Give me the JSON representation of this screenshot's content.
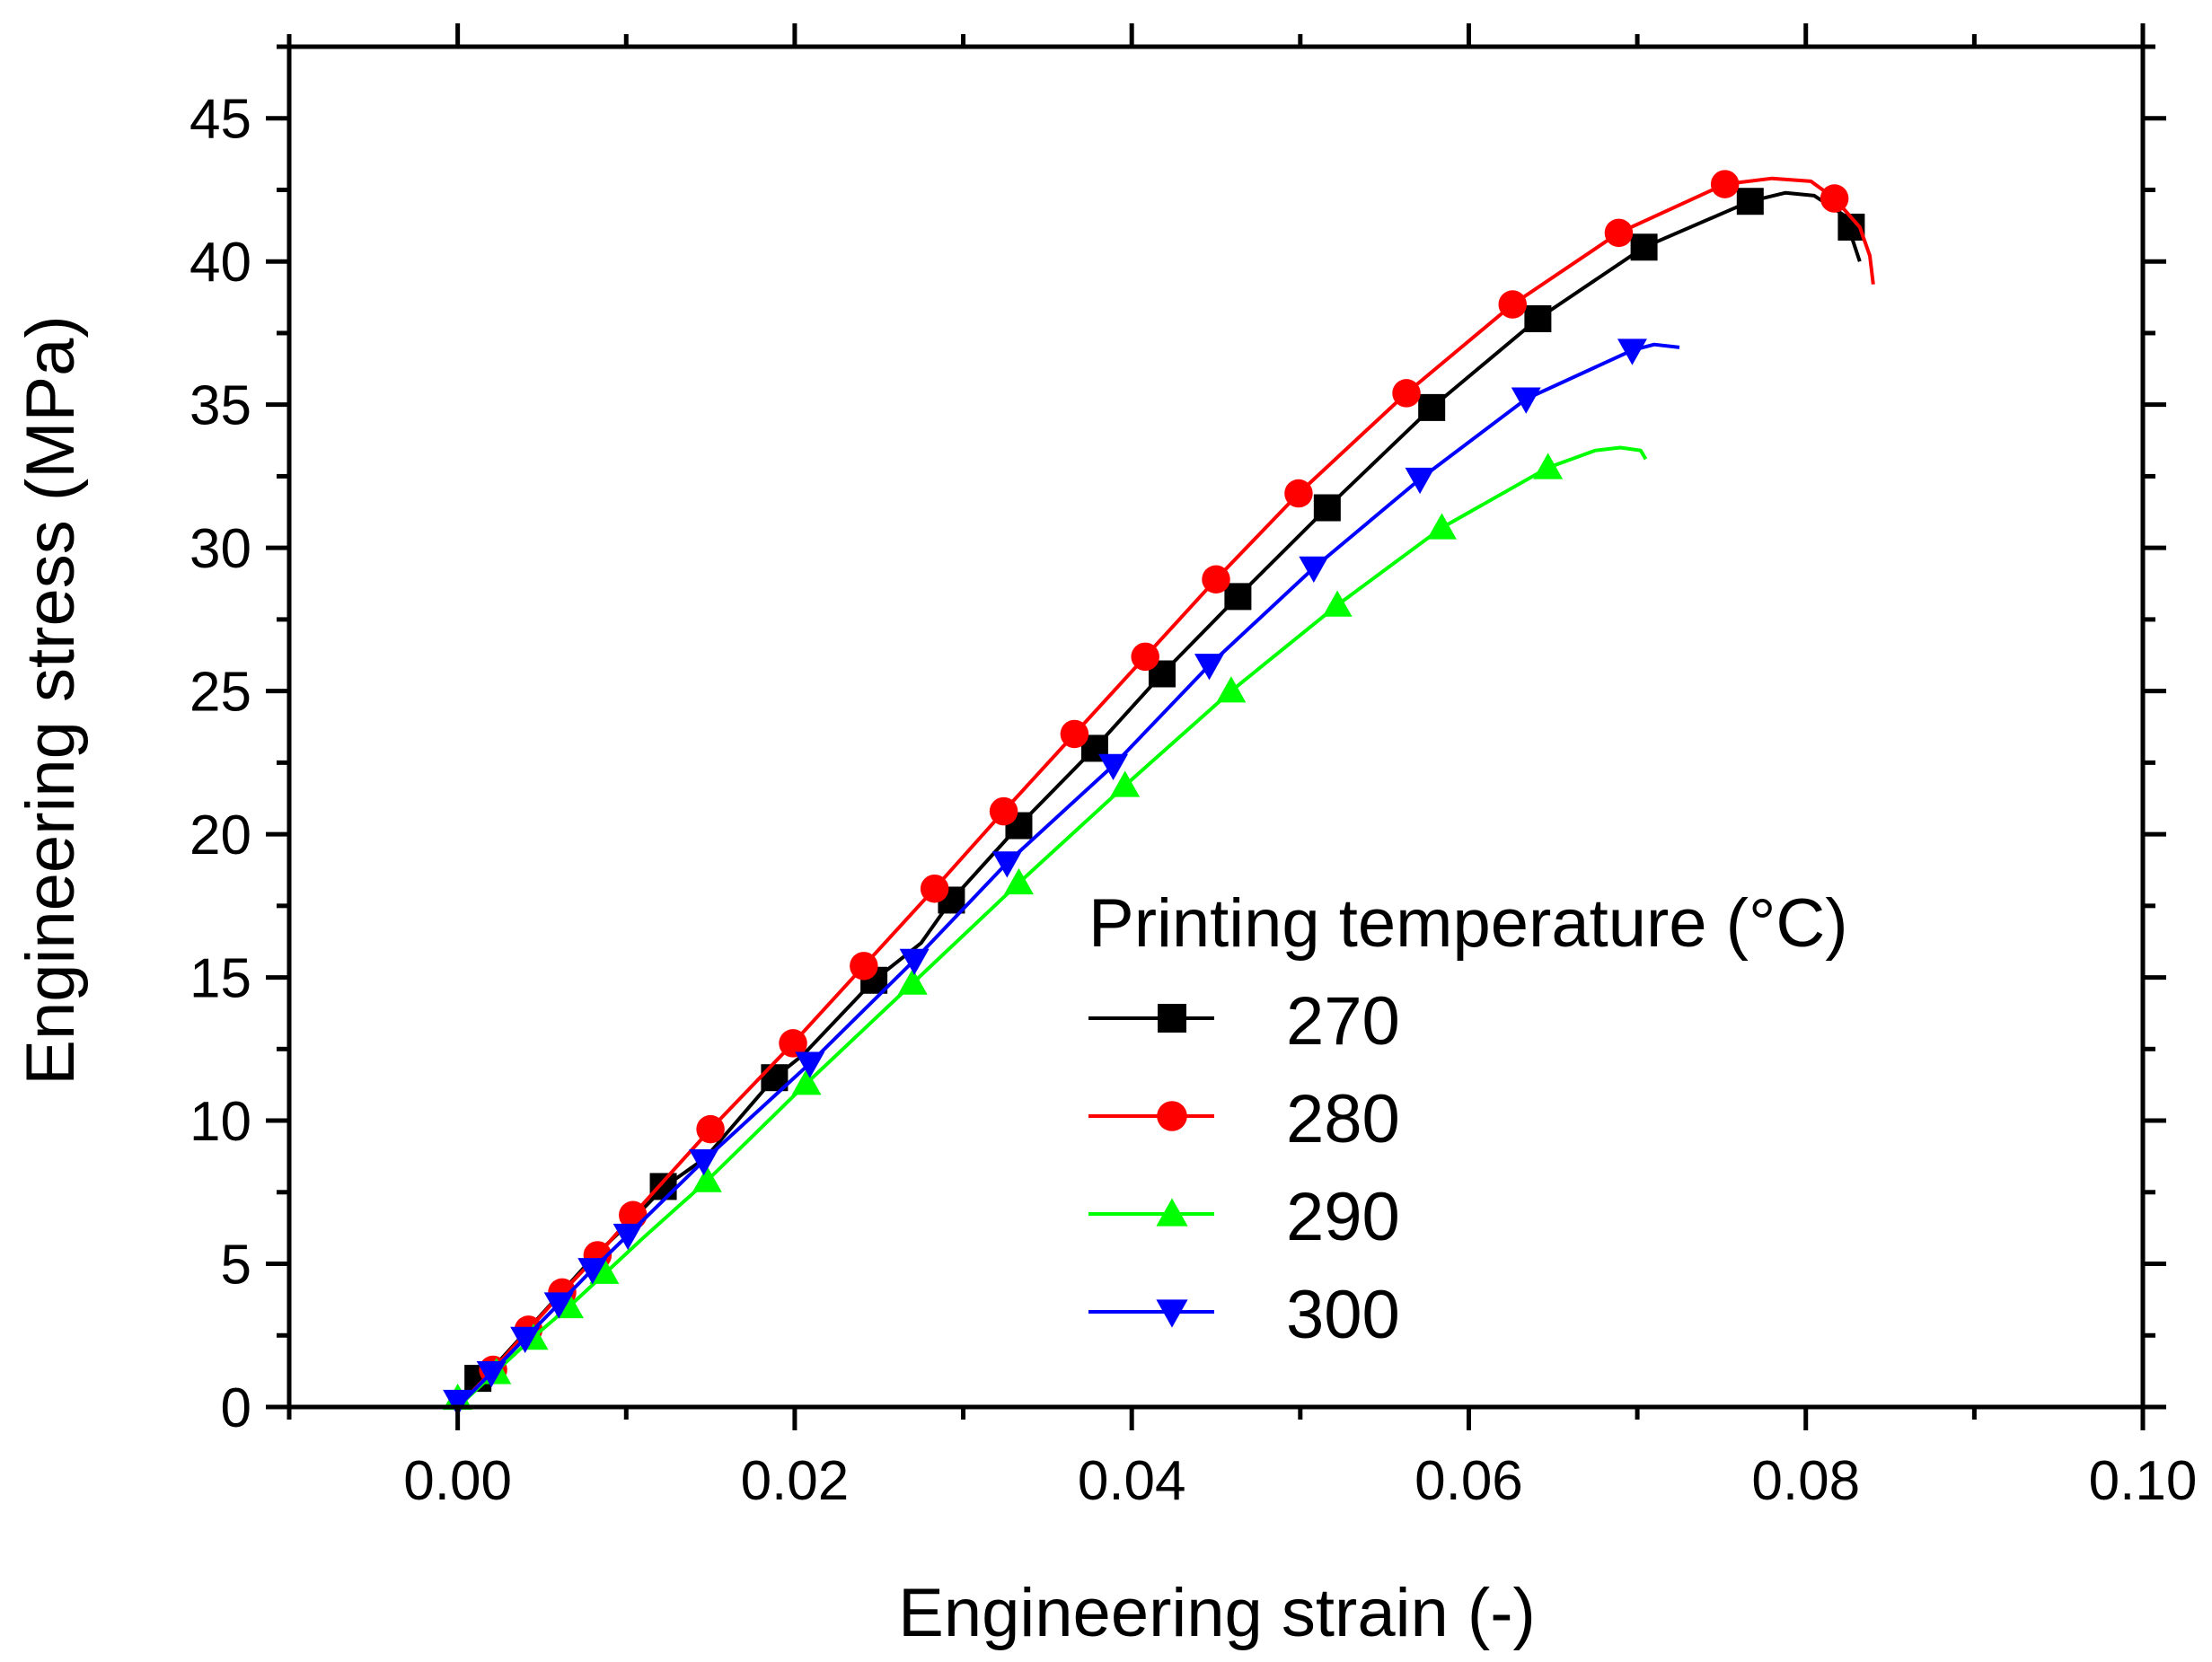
{
  "chart_data": {
    "type": "line",
    "xlabel": "Engineering strain (-)",
    "ylabel": "Engineering stress (MPa)",
    "xlim": [
      -0.01,
      0.1
    ],
    "ylim": [
      0,
      47.5
    ],
    "xticks": [
      0.0,
      0.02,
      0.04,
      0.06,
      0.08,
      0.1
    ],
    "xtick_labels": [
      "0.00",
      "0.02",
      "0.04",
      "0.06",
      "0.08",
      "0.10"
    ],
    "yticks": [
      0,
      5,
      10,
      15,
      20,
      25,
      30,
      35,
      40,
      45
    ],
    "ytick_labels": [
      "0",
      "5",
      "10",
      "15",
      "20",
      "25",
      "30",
      "35",
      "40",
      "45"
    ],
    "grid": false,
    "legend": {
      "title": "Printing temperature (°C)",
      "position": "center-right"
    },
    "series": [
      {
        "name": "270",
        "color": "#000000",
        "marker": "square",
        "x": [
          0.0,
          0.002,
          0.004,
          0.006,
          0.008,
          0.0103,
          0.0123,
          0.0147,
          0.0188,
          0.0205,
          0.0247,
          0.0275,
          0.0293,
          0.0333,
          0.0378,
          0.0418,
          0.0463,
          0.0516,
          0.0578,
          0.0641,
          0.0704,
          0.0767,
          0.0788,
          0.0805,
          0.0823,
          0.0832
        ],
        "y": [
          0.0,
          1.3,
          2.6,
          3.9,
          5.2,
          6.5,
          7.7,
          8.7,
          11.5,
          12.3,
          14.9,
          16.2,
          17.7,
          20.3,
          23.0,
          25.6,
          28.3,
          31.4,
          34.9,
          38.0,
          40.5,
          42.1,
          42.4,
          42.3,
          41.6,
          40.0
        ],
        "marker_x": [
          0.0012,
          0.0122,
          0.0188,
          0.0247,
          0.0293,
          0.0333,
          0.0378,
          0.0418,
          0.0463,
          0.0516,
          0.0578,
          0.0641,
          0.0704,
          0.0767,
          0.0827
        ],
        "marker_y": [
          1.0,
          7.7,
          11.5,
          14.9,
          17.7,
          20.3,
          23.0,
          25.6,
          28.3,
          31.4,
          34.9,
          38.0,
          40.5,
          42.1,
          41.2
        ]
      },
      {
        "name": "280",
        "color": "#ff0000",
        "marker": "circle",
        "x": [
          0.0,
          0.0021,
          0.0042,
          0.0062,
          0.0083,
          0.0104,
          0.015,
          0.0199,
          0.0241,
          0.0283,
          0.0324,
          0.0366,
          0.0408,
          0.045,
          0.0499,
          0.0563,
          0.0626,
          0.0689,
          0.0752,
          0.078,
          0.0803,
          0.0817,
          0.0832,
          0.0838,
          0.084
        ],
        "y": [
          0.0,
          1.3,
          2.7,
          4.0,
          5.3,
          6.7,
          9.7,
          12.7,
          15.4,
          18.1,
          20.8,
          23.5,
          26.2,
          28.9,
          31.9,
          35.4,
          38.5,
          41.0,
          42.7,
          42.9,
          42.8,
          42.2,
          41.2,
          40.2,
          39.2
        ],
        "marker_x": [
          0.0021,
          0.0042,
          0.0062,
          0.0083,
          0.0104,
          0.015,
          0.0199,
          0.0241,
          0.0283,
          0.0324,
          0.0366,
          0.0408,
          0.045,
          0.0499,
          0.0563,
          0.0626,
          0.0689,
          0.0752,
          0.0817
        ],
        "marker_y": [
          1.3,
          2.7,
          4.0,
          5.3,
          6.7,
          9.7,
          12.7,
          15.4,
          18.1,
          20.8,
          23.5,
          26.2,
          28.9,
          31.9,
          35.4,
          38.5,
          41.0,
          42.7,
          42.2
        ]
      },
      {
        "name": "290",
        "color": "#00ff00",
        "marker": "triangle-up",
        "x": [
          0.0,
          0.0022,
          0.0044,
          0.0066,
          0.0088,
          0.011,
          0.0148,
          0.0207,
          0.027,
          0.0333,
          0.0396,
          0.0459,
          0.0522,
          0.0584,
          0.0647,
          0.0675,
          0.069,
          0.0702,
          0.0705
        ],
        "y": [
          0.0,
          1.2,
          2.4,
          3.5,
          4.7,
          5.9,
          7.9,
          11.3,
          14.8,
          18.3,
          21.7,
          25.0,
          28.0,
          30.7,
          32.8,
          33.4,
          33.5,
          33.4,
          33.1
        ],
        "marker_x": [
          0.0,
          0.0023,
          0.0045,
          0.0066,
          0.0087,
          0.0148,
          0.0207,
          0.027,
          0.0333,
          0.0396,
          0.0459,
          0.0522,
          0.0584,
          0.0647
        ],
        "marker_y": [
          0.3,
          1.2,
          2.4,
          3.5,
          4.7,
          7.9,
          11.3,
          14.8,
          18.3,
          21.7,
          25.0,
          28.0,
          30.7,
          32.8
        ]
      },
      {
        "name": "300",
        "color": "#0000ff",
        "marker": "triangle-down",
        "x": [
          0.0,
          0.002,
          0.004,
          0.006,
          0.008,
          0.0101,
          0.0146,
          0.0209,
          0.0271,
          0.0326,
          0.0389,
          0.0446,
          0.0508,
          0.0571,
          0.0634,
          0.0697,
          0.071,
          0.0725
        ],
        "y": [
          0.0,
          1.2,
          2.4,
          3.6,
          4.8,
          6.0,
          8.6,
          12.0,
          15.6,
          19.0,
          22.4,
          25.9,
          29.3,
          32.4,
          35.2,
          36.9,
          37.1,
          37.0
        ],
        "marker_x": [
          0.0,
          0.002,
          0.004,
          0.006,
          0.008,
          0.0101,
          0.0146,
          0.0209,
          0.0271,
          0.0326,
          0.0389,
          0.0446,
          0.0508,
          0.0571,
          0.0634,
          0.0697
        ],
        "marker_y": [
          0.2,
          1.2,
          2.4,
          3.6,
          4.8,
          6.0,
          8.6,
          12.0,
          15.6,
          19.0,
          22.4,
          25.9,
          29.3,
          32.4,
          35.2,
          36.9
        ]
      }
    ]
  }
}
